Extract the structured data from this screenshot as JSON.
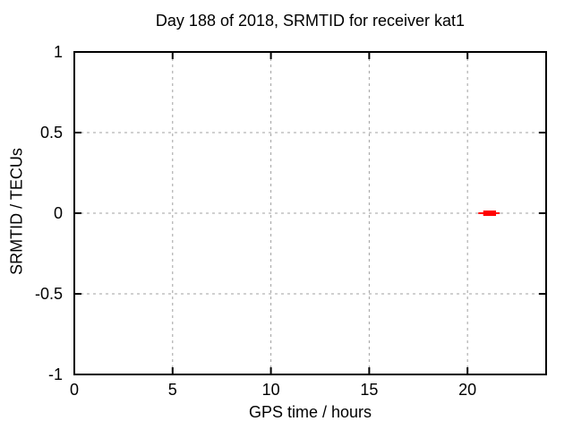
{
  "page": {
    "background_color": "#ffffff",
    "text_color": "#000000"
  },
  "chart_data": {
    "type": "line",
    "title": "Day 188 of 2018, SRMTID for receiver kat1",
    "xlabel": "GPS time / hours",
    "ylabel": "SRMTID / TECUs",
    "xlim": [
      0,
      24
    ],
    "ylim": [
      -1,
      1
    ],
    "xticks": [
      0,
      5,
      10,
      15,
      20
    ],
    "yticks": [
      -1,
      -0.5,
      0,
      0.5,
      1
    ],
    "grid": true,
    "grid_color": "#a0a0a0",
    "axis_color": "#000000",
    "legend": "none",
    "series": [
      {
        "name": "SRMTID",
        "color": "#ff0000",
        "description": "short run of near-zero SRMTID values around 20.6-21.6 GPS hours, drawn as a thick red bar at y=0",
        "segments": [
          {
            "x1": 20.55,
            "x2": 21.64,
            "y": 0,
            "stroke_px": 2
          },
          {
            "x1": 20.8,
            "x2": 21.45,
            "y": 0,
            "stroke_px": 6
          }
        ]
      }
    ]
  }
}
